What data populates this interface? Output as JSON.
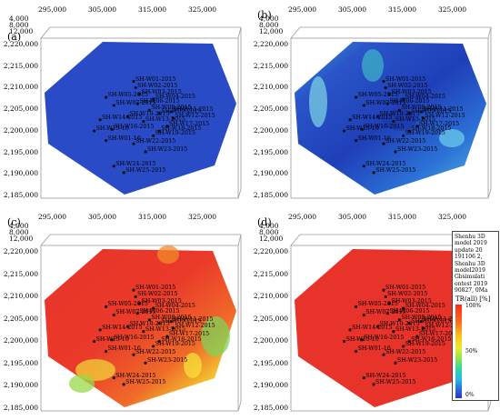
{
  "panels": [
    {
      "label": "(a)",
      "fill": "blue"
    },
    {
      "label": "(b)",
      "fill": "blue_var"
    },
    {
      "label": "(c)",
      "fill": "red_var"
    },
    {
      "label": "(d)",
      "fill": "red"
    }
  ],
  "x_ticks": [
    "295,000",
    "305,000",
    "315,000",
    "325,000"
  ],
  "y_ticks": [
    "2,220,000",
    "2,215,000",
    "2,210,000",
    "2,205,000",
    "2,200,000",
    "2,195,000",
    "2,190,000",
    "2,185,000"
  ],
  "z_ticks": [
    "4,000",
    "8,000",
    "12,000"
  ],
  "wells": [
    {
      "name": "SH-W01-2015"
    },
    {
      "name": "SH-W02-2015"
    },
    {
      "name": "SH-W03-2015"
    },
    {
      "name": "SH-W04-2015"
    },
    {
      "name": "SH-W05-2015"
    },
    {
      "name": "SH-W06-2015"
    },
    {
      "name": "SH-W07-2015"
    },
    {
      "name": "SH-W08-2015"
    },
    {
      "name": "SH-W09-2015"
    },
    {
      "name": "SH-W10-2015"
    },
    {
      "name": "SH-W11-2015"
    },
    {
      "name": "SH-W12-2015"
    },
    {
      "name": "SH-W13-2015"
    },
    {
      "name": "SH-W14-2015"
    },
    {
      "name": "SH-W15-16"
    },
    {
      "name": "SH-W16-2015"
    },
    {
      "name": "SH-W17-2015"
    },
    {
      "name": "SH-W18-2015"
    },
    {
      "name": "SH-W19-2015"
    },
    {
      "name": "SH-W01-16"
    },
    {
      "name": "SH-W22-2015"
    },
    {
      "name": "SH-W23-2015"
    },
    {
      "name": "SH-W24-2015"
    },
    {
      "name": "SH-W25-2015"
    }
  ],
  "legend": {
    "text": "Shenhu 3D model 2019 update 20 191106 2, Shenhu 3D model2019 Gbsimulati ontest 2019 90827, 0Ma",
    "unit": "TR(all) [%]",
    "ticks": [
      "100%",
      "50%",
      "0%"
    ]
  },
  "colors": {
    "blue": "#2a4bc6",
    "red": "#e8332a",
    "frame": "#9a9a9a"
  }
}
